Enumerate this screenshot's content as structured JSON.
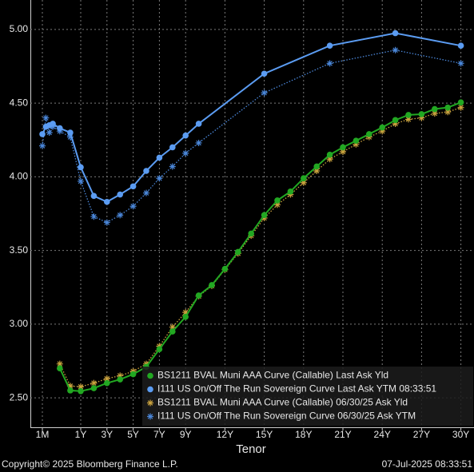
{
  "chart_data": {
    "type": "line",
    "x_label": "Tenor",
    "copyright": "Copyright© 2025 Bloomberg Finance L.P.",
    "timestamp": "07-Jul-2025 08:33:51",
    "legend": "lower right",
    "grid": true,
    "xlim": [
      -0.2,
      31
    ],
    "xticks": [
      {
        "value": 0.0833,
        "label": "1M"
      },
      {
        "value": 1,
        "label": "1Y"
      },
      {
        "value": 3,
        "label": "3Y"
      },
      {
        "value": 5,
        "label": "5Y"
      },
      {
        "value": 7,
        "label": "7Y"
      },
      {
        "value": 9,
        "label": "9Y"
      },
      {
        "value": 12,
        "label": "12Y"
      },
      {
        "value": 15,
        "label": "15Y"
      },
      {
        "value": 18,
        "label": "18Y"
      },
      {
        "value": 21,
        "label": "21Y"
      },
      {
        "value": 24,
        "label": "24Y"
      },
      {
        "value": 27,
        "label": "27Y"
      },
      {
        "value": 30,
        "label": "30Y"
      }
    ],
    "ylim": [
      2.3,
      5.2
    ],
    "yticks": [
      {
        "value": 2.5,
        "label": "2.50"
      },
      {
        "value": 3,
        "label": "3.00"
      },
      {
        "value": 3.5,
        "label": "3.50"
      },
      {
        "value": 4,
        "label": "4.00"
      },
      {
        "value": 4.5,
        "label": "4.50"
      },
      {
        "value": 5,
        "label": "5.00"
      }
    ],
    "series": [
      {
        "name": "BS1211 BVAL Muni AAA Curve (Callable) Last Ask Yld",
        "color": "#22a822",
        "marker": "circle",
        "line_style": "solid",
        "x": [
          0.5,
          0.75,
          1,
          2,
          3,
          4,
          5,
          6,
          7,
          8,
          9,
          10,
          11,
          12,
          13,
          14,
          15,
          16,
          17,
          18,
          19,
          20,
          21,
          22,
          23,
          24,
          25,
          26,
          27,
          28,
          29,
          30
        ],
        "values": [
          2.7,
          2.55,
          2.545,
          2.565,
          2.6,
          2.625,
          2.66,
          2.71,
          2.83,
          2.95,
          3.05,
          3.195,
          3.265,
          3.375,
          3.49,
          3.615,
          3.74,
          3.84,
          3.9,
          3.99,
          4.07,
          4.15,
          4.2,
          4.245,
          4.29,
          4.335,
          4.385,
          4.42,
          4.425,
          4.46,
          4.47,
          4.505
        ]
      },
      {
        "name": "I111 US On/Off The Run Sovereign Curve Last Ask YTM 08:33:51",
        "color": "#5b9cf2",
        "marker": "circle",
        "line_style": "solid",
        "x": [
          0.0833,
          0.1667,
          0.25,
          0.3333,
          0.5,
          0.75,
          1,
          2,
          3,
          4,
          5,
          6,
          7,
          8,
          9,
          10,
          15,
          20,
          25,
          30
        ],
        "values": [
          4.29,
          4.34,
          4.35,
          4.36,
          4.33,
          4.3,
          4.065,
          3.87,
          3.83,
          3.88,
          3.935,
          4.04,
          4.13,
          4.2,
          4.28,
          4.36,
          4.7,
          4.89,
          4.975,
          4.89
        ]
      },
      {
        "name": "BS1211 BVAL Muni AAA Curve (Callable) 06/30/25 Ask Yld",
        "color": "#c9a23e",
        "marker": "asterisk",
        "line_style": "dotted",
        "x": [
          0.5,
          0.75,
          1,
          2,
          3,
          4,
          5,
          6,
          7,
          8,
          9,
          10,
          11,
          12,
          13,
          14,
          15,
          16,
          17,
          18,
          19,
          20,
          21,
          22,
          23,
          24,
          25,
          26,
          27,
          28,
          29,
          30
        ],
        "values": [
          2.73,
          2.58,
          2.575,
          2.6,
          2.63,
          2.65,
          2.68,
          2.73,
          2.85,
          2.98,
          3.08,
          3.19,
          3.26,
          3.37,
          3.48,
          3.6,
          3.72,
          3.81,
          3.88,
          3.96,
          4.04,
          4.12,
          4.17,
          4.22,
          4.27,
          4.31,
          4.36,
          4.39,
          4.4,
          4.43,
          4.44,
          4.47
        ]
      },
      {
        "name": "I111 US On/Off The Run Sovereign Curve 06/30/25 Ask YTM",
        "color": "#4a86d8",
        "marker": "asterisk",
        "line_style": "dotted",
        "x": [
          0.0833,
          0.1667,
          0.25,
          0.3333,
          0.5,
          0.75,
          1,
          2,
          3,
          4,
          5,
          6,
          7,
          8,
          9,
          10,
          15,
          20,
          25,
          30
        ],
        "values": [
          4.21,
          4.4,
          4.3,
          4.34,
          4.31,
          4.27,
          3.97,
          3.73,
          3.69,
          3.74,
          3.8,
          3.89,
          3.99,
          4.07,
          4.16,
          4.23,
          4.57,
          4.77,
          4.86,
          4.77
        ]
      }
    ]
  }
}
